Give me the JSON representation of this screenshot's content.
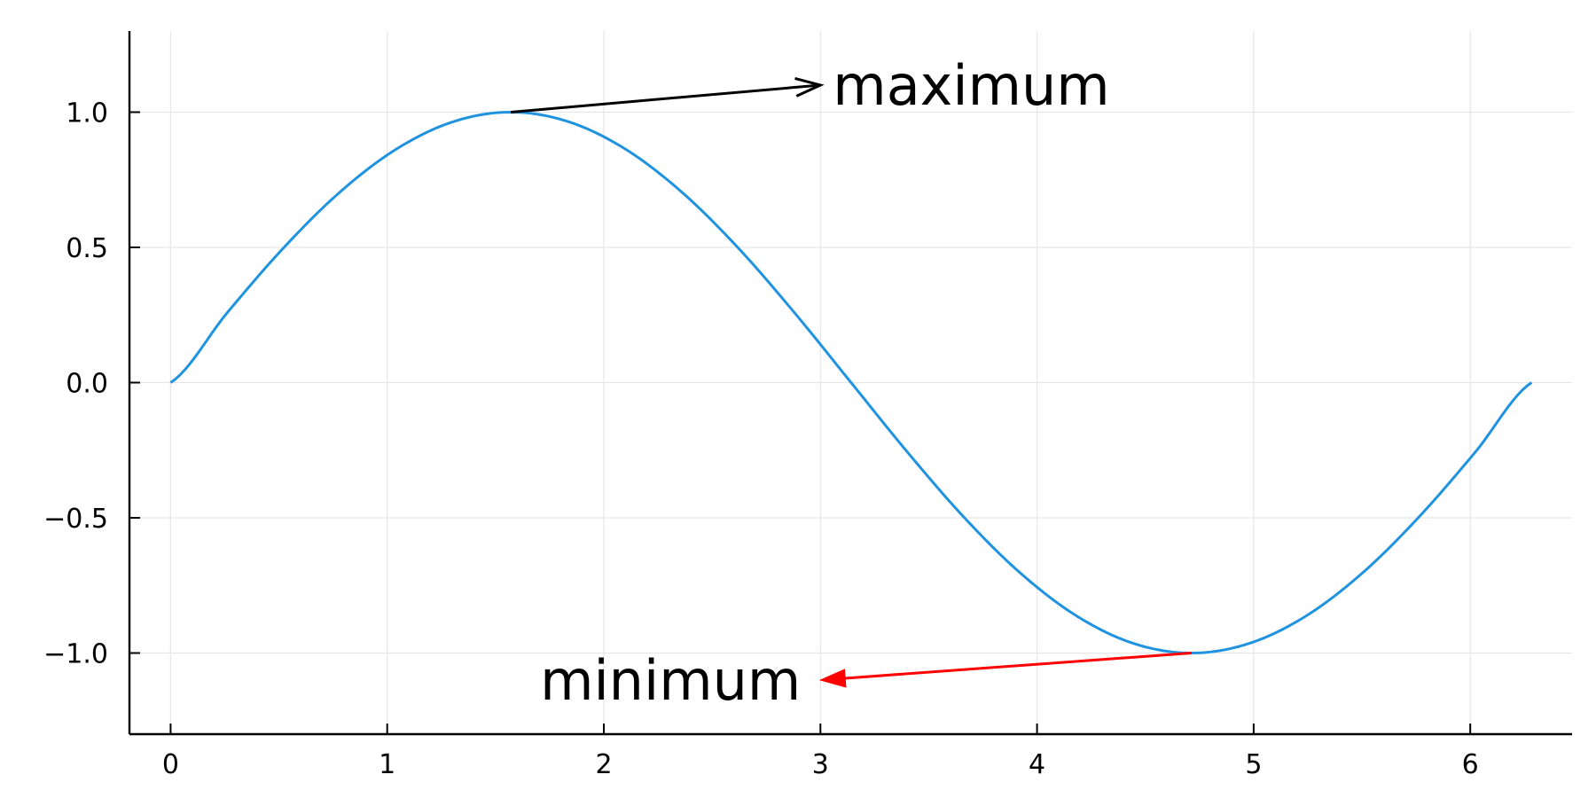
{
  "chart_data": {
    "type": "line",
    "title": "",
    "xlabel": "",
    "ylabel": "",
    "xlim": [
      -0.19,
      6.47
    ],
    "ylim": [
      -1.3,
      1.3
    ],
    "grid": true,
    "legend": "none",
    "x_ticks": [
      0,
      1,
      2,
      3,
      4,
      5,
      6
    ],
    "x_tick_labels": [
      "0",
      "1",
      "2",
      "3",
      "4",
      "5",
      "6"
    ],
    "y_ticks": [
      1.0,
      0.5,
      0.0,
      -0.5,
      -1.0
    ],
    "y_tick_labels": [
      "1.0",
      "0.5",
      "0.0",
      "−0.5",
      "−1.0"
    ],
    "series": [
      {
        "color": "#1f93e0",
        "x": [
          0,
          0.2618,
          0.5236,
          0.7854,
          1.0472,
          1.309,
          1.5708,
          1.8326,
          2.0944,
          2.3562,
          2.618,
          2.8798,
          3.1416,
          3.4034,
          3.6652,
          3.927,
          4.1888,
          4.4506,
          4.7124,
          4.9742,
          5.236,
          5.4978,
          5.7596,
          6.0214,
          6.2832
        ],
        "y": [
          0,
          0.2588,
          0.5,
          0.7071,
          0.866,
          0.9659,
          1.0,
          0.9659,
          0.866,
          0.7071,
          0.5,
          0.2588,
          0,
          -0.2588,
          -0.5,
          -0.7071,
          -0.866,
          -0.9659,
          -1.0,
          -0.9659,
          -0.866,
          -0.7071,
          -0.5,
          -0.2588,
          0
        ]
      }
    ],
    "annotations": [
      {
        "text": "maximum",
        "from": [
          1.5708,
          1.0
        ],
        "to": [
          3.0,
          1.1
        ],
        "arrow_color": "#000000",
        "arrow_head": "open",
        "text_anchor": "start"
      },
      {
        "text": "minimum",
        "from": [
          4.7124,
          -1.0
        ],
        "to": [
          3.0,
          -1.1
        ],
        "arrow_color": "#ff0000",
        "arrow_head": "filled",
        "text_anchor": "end"
      }
    ],
    "colors": {
      "axis": "#000000",
      "grid": "#e6e6e6"
    }
  }
}
